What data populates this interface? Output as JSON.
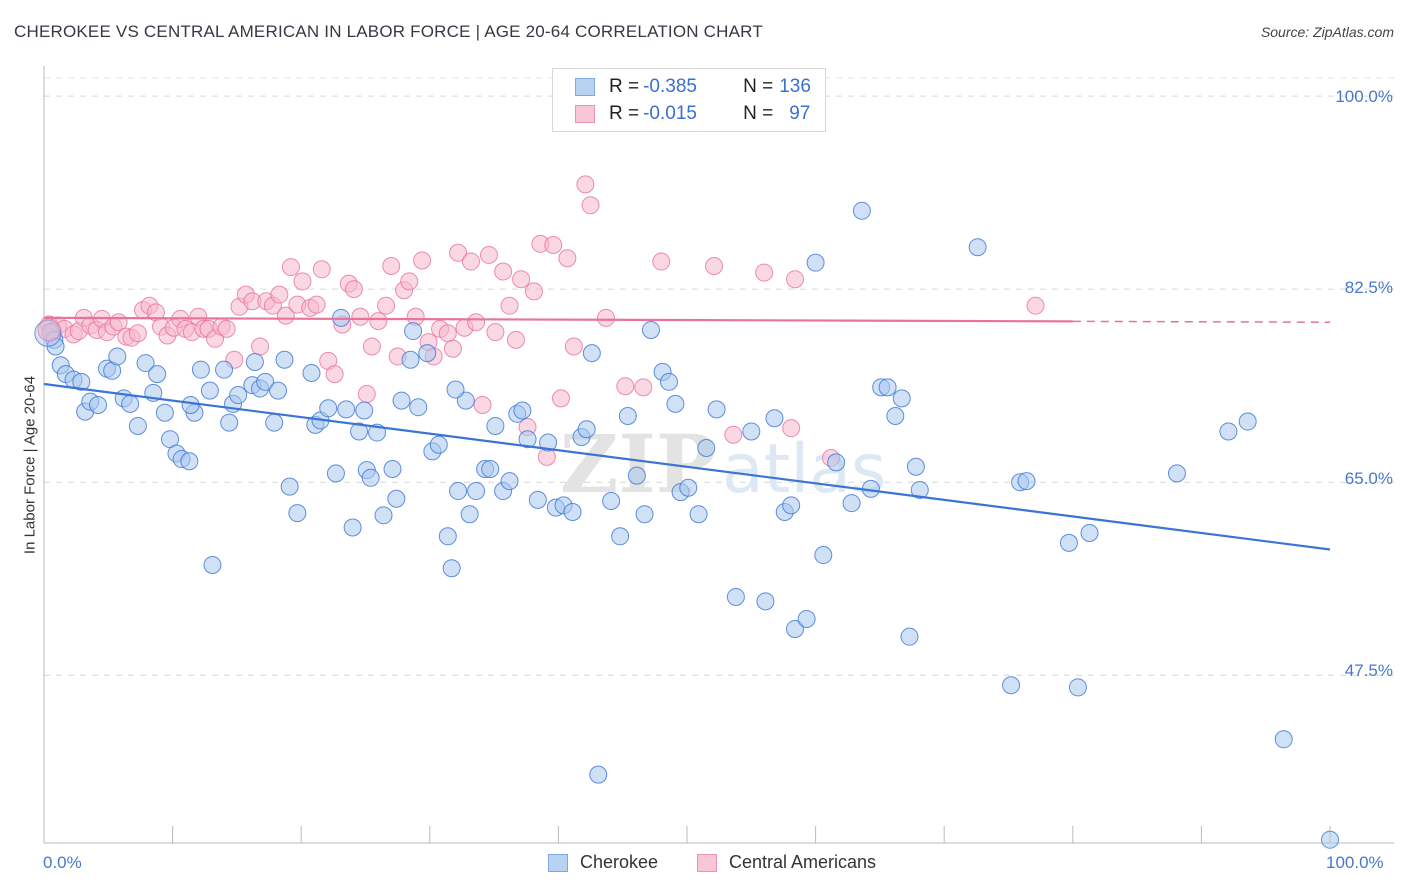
{
  "title": "CHEROKEE VS CENTRAL AMERICAN IN LABOR FORCE | AGE 20-64 CORRELATION CHART",
  "source": "Source: ZipAtlas.com",
  "colors": {
    "blue": "#3a74d4",
    "blue_fill": "#a9c8ef",
    "pink": "#e9729c",
    "pink_fill": "#f5b8cc",
    "tick_text": "#4a78c8"
  },
  "legend": {
    "rows": [
      {
        "r_label": "R = ",
        "r_value": "-0.385",
        "n_label": "N = ",
        "n_value": "136"
      },
      {
        "r_label": "R = ",
        "r_value": "-0.015",
        "n_label": "N = ",
        "n_value": "97"
      }
    ]
  },
  "bottom_legend": {
    "series1": "Cherokee",
    "series2": "Central Americans"
  },
  "chart_data": {
    "type": "scatter",
    "title": "CHEROKEE VS CENTRAL AMERICAN IN LABOR FORCE | AGE 20-64 CORRELATION CHART",
    "ylabel": "In Labor Force | Age 20-64",
    "xlabel": "",
    "x_tick_labels": [
      "0.0%",
      "100.0%"
    ],
    "y_tick_labels": [
      "100.0%",
      "82.5%",
      "65.0%",
      "47.5%"
    ],
    "y_ticks": [
      100.0,
      82.5,
      65.0,
      47.5
    ],
    "xlim": [
      0,
      100
    ],
    "ylim": [
      32.3,
      102.0
    ],
    "grid": true,
    "legend_position": "top-center",
    "series": [
      {
        "name": "Cherokee",
        "R": -0.385,
        "N": 136,
        "trend": {
          "x0": 0,
          "y0": 73.9,
          "x1": 100,
          "y1": 58.9
        },
        "points": [
          [
            0.5,
            78.6
          ],
          [
            0.8,
            77.9
          ],
          [
            0.9,
            77.3
          ],
          [
            1.3,
            75.6
          ],
          [
            1.7,
            74.8
          ],
          [
            2.3,
            74.3
          ],
          [
            2.9,
            74.1
          ],
          [
            3.2,
            71.4
          ],
          [
            3.6,
            72.3
          ],
          [
            4.2,
            72.0
          ],
          [
            4.9,
            75.3
          ],
          [
            5.3,
            75.1
          ],
          [
            5.7,
            76.4
          ],
          [
            6.2,
            72.6
          ],
          [
            6.7,
            72.1
          ],
          [
            7.3,
            70.1
          ],
          [
            7.9,
            75.8
          ],
          [
            8.5,
            73.1
          ],
          [
            8.8,
            74.8
          ],
          [
            9.4,
            71.3
          ],
          [
            9.8,
            68.9
          ],
          [
            10.3,
            67.6
          ],
          [
            10.7,
            67.1
          ],
          [
            11.3,
            66.9
          ],
          [
            11.7,
            71.3
          ],
          [
            12.2,
            75.2
          ],
          [
            12.9,
            73.3
          ],
          [
            13.1,
            57.5
          ],
          [
            14.0,
            75.2
          ],
          [
            14.4,
            70.4
          ],
          [
            14.7,
            72.1
          ],
          [
            15.1,
            72.9
          ],
          [
            16.2,
            73.8
          ],
          [
            16.4,
            75.9
          ],
          [
            16.8,
            73.5
          ],
          [
            17.2,
            74.1
          ],
          [
            17.9,
            70.4
          ],
          [
            18.2,
            73.3
          ],
          [
            18.7,
            76.1
          ],
          [
            19.1,
            64.6
          ],
          [
            19.7,
            62.2
          ],
          [
            20.8,
            74.9
          ],
          [
            21.1,
            70.2
          ],
          [
            21.5,
            70.6
          ],
          [
            22.1,
            71.7
          ],
          [
            22.7,
            65.8
          ],
          [
            23.1,
            79.9
          ],
          [
            23.5,
            71.6
          ],
          [
            24.0,
            60.9
          ],
          [
            24.5,
            69.6
          ],
          [
            25.1,
            66.1
          ],
          [
            25.4,
            65.4
          ],
          [
            25.9,
            69.5
          ],
          [
            26.4,
            62.0
          ],
          [
            27.1,
            66.2
          ],
          [
            27.4,
            63.5
          ],
          [
            27.8,
            72.4
          ],
          [
            28.5,
            76.1
          ],
          [
            28.7,
            78.7
          ],
          [
            29.1,
            71.8
          ],
          [
            29.8,
            76.7
          ],
          [
            30.2,
            67.8
          ],
          [
            30.7,
            68.4
          ],
          [
            31.4,
            60.1
          ],
          [
            31.7,
            57.2
          ],
          [
            32.2,
            64.2
          ],
          [
            32.8,
            72.4
          ],
          [
            33.1,
            62.1
          ],
          [
            33.6,
            64.2
          ],
          [
            34.3,
            66.2
          ],
          [
            34.7,
            66.2
          ],
          [
            35.1,
            70.1
          ],
          [
            35.7,
            64.2
          ],
          [
            36.2,
            65.1
          ],
          [
            36.8,
            71.2
          ],
          [
            37.2,
            71.5
          ],
          [
            37.6,
            68.9
          ],
          [
            38.4,
            63.4
          ],
          [
            39.2,
            68.6
          ],
          [
            39.8,
            62.7
          ],
          [
            40.4,
            62.9
          ],
          [
            41.1,
            62.3
          ],
          [
            41.8,
            69.1
          ],
          [
            42.2,
            69.8
          ],
          [
            42.6,
            76.7
          ],
          [
            43.1,
            38.5
          ],
          [
            44.1,
            63.3
          ],
          [
            44.8,
            60.1
          ],
          [
            45.4,
            71.0
          ],
          [
            46.1,
            65.6
          ],
          [
            46.7,
            62.1
          ],
          [
            47.2,
            78.8
          ],
          [
            48.1,
            75.0
          ],
          [
            48.6,
            74.1
          ],
          [
            49.1,
            72.1
          ],
          [
            49.5,
            64.1
          ],
          [
            50.1,
            64.5
          ],
          [
            50.9,
            62.1
          ],
          [
            51.5,
            68.1
          ],
          [
            52.3,
            71.6
          ],
          [
            53.8,
            54.6
          ],
          [
            55.0,
            69.6
          ],
          [
            56.1,
            54.2
          ],
          [
            56.8,
            70.8
          ],
          [
            57.6,
            62.3
          ],
          [
            58.1,
            62.9
          ],
          [
            58.4,
            51.7
          ],
          [
            59.3,
            52.6
          ],
          [
            60.0,
            84.9
          ],
          [
            60.6,
            58.4
          ],
          [
            61.6,
            66.8
          ],
          [
            62.8,
            63.1
          ],
          [
            63.6,
            89.6
          ],
          [
            64.3,
            64.4
          ],
          [
            65.1,
            73.6
          ],
          [
            65.6,
            73.6
          ],
          [
            66.2,
            71.0
          ],
          [
            66.7,
            72.6
          ],
          [
            67.3,
            51.0
          ],
          [
            67.8,
            66.4
          ],
          [
            68.1,
            64.3
          ],
          [
            72.6,
            86.3
          ],
          [
            75.2,
            46.6
          ],
          [
            75.9,
            65.0
          ],
          [
            76.4,
            65.1
          ],
          [
            79.7,
            59.5
          ],
          [
            80.4,
            46.4
          ],
          [
            81.3,
            60.4
          ],
          [
            88.1,
            65.8
          ],
          [
            92.1,
            69.6
          ],
          [
            93.6,
            70.5
          ],
          [
            96.4,
            41.7
          ],
          [
            100.0,
            32.6
          ],
          [
            11.4,
            72.0
          ],
          [
            24.9,
            71.5
          ],
          [
            32.0,
            73.4
          ]
        ]
      },
      {
        "name": "Central Americans",
        "R": -0.015,
        "N": 97,
        "trend": {
          "x0": 0,
          "y0": 79.9,
          "x1": 100,
          "y1": 79.5,
          "solid_until_x": 80
        },
        "points": [
          [
            0.4,
            79.3
          ],
          [
            0.7,
            78.7
          ],
          [
            1.1,
            79.2
          ],
          [
            1.6,
            78.9
          ],
          [
            2.3,
            78.4
          ],
          [
            2.7,
            78.7
          ],
          [
            3.1,
            79.9
          ],
          [
            3.6,
            79.2
          ],
          [
            4.1,
            78.8
          ],
          [
            4.5,
            79.8
          ],
          [
            4.9,
            78.6
          ],
          [
            5.4,
            79.1
          ],
          [
            5.8,
            79.5
          ],
          [
            6.4,
            78.2
          ],
          [
            6.8,
            78.1
          ],
          [
            7.3,
            78.5
          ],
          [
            7.7,
            80.6
          ],
          [
            8.2,
            81.0
          ],
          [
            8.7,
            80.4
          ],
          [
            9.1,
            79.1
          ],
          [
            9.6,
            78.3
          ],
          [
            10.1,
            79.0
          ],
          [
            10.6,
            79.8
          ],
          [
            11.0,
            78.9
          ],
          [
            11.5,
            78.6
          ],
          [
            12.0,
            80.0
          ],
          [
            12.4,
            78.9
          ],
          [
            12.8,
            78.9
          ],
          [
            13.3,
            78.0
          ],
          [
            13.8,
            79.1
          ],
          [
            14.2,
            78.9
          ],
          [
            14.8,
            76.1
          ],
          [
            15.2,
            80.9
          ],
          [
            15.7,
            82.0
          ],
          [
            16.2,
            81.4
          ],
          [
            16.8,
            77.3
          ],
          [
            17.3,
            81.4
          ],
          [
            17.8,
            81.0
          ],
          [
            18.3,
            82.0
          ],
          [
            18.8,
            80.1
          ],
          [
            19.2,
            84.5
          ],
          [
            19.7,
            81.1
          ],
          [
            20.1,
            83.2
          ],
          [
            20.7,
            80.8
          ],
          [
            21.2,
            81.1
          ],
          [
            21.6,
            84.3
          ],
          [
            22.1,
            76.0
          ],
          [
            22.6,
            74.8
          ],
          [
            23.2,
            79.3
          ],
          [
            23.7,
            83.0
          ],
          [
            24.1,
            82.5
          ],
          [
            24.6,
            80.0
          ],
          [
            25.1,
            73.0
          ],
          [
            25.5,
            77.3
          ],
          [
            26.0,
            79.6
          ],
          [
            26.6,
            81.0
          ],
          [
            27.0,
            84.6
          ],
          [
            27.5,
            76.4
          ],
          [
            28.0,
            82.4
          ],
          [
            28.4,
            83.2
          ],
          [
            28.9,
            80.0
          ],
          [
            29.4,
            85.1
          ],
          [
            29.9,
            77.7
          ],
          [
            30.3,
            76.4
          ],
          [
            30.8,
            78.9
          ],
          [
            31.4,
            78.5
          ],
          [
            31.8,
            77.1
          ],
          [
            32.2,
            85.8
          ],
          [
            32.7,
            79.0
          ],
          [
            33.2,
            85.0
          ],
          [
            33.6,
            79.5
          ],
          [
            34.1,
            72.0
          ],
          [
            34.6,
            85.6
          ],
          [
            35.1,
            78.6
          ],
          [
            35.7,
            84.1
          ],
          [
            36.2,
            81.0
          ],
          [
            36.7,
            77.9
          ],
          [
            37.1,
            83.4
          ],
          [
            37.6,
            70.0
          ],
          [
            38.1,
            82.3
          ],
          [
            38.6,
            86.6
          ],
          [
            39.1,
            67.3
          ],
          [
            39.6,
            86.5
          ],
          [
            40.2,
            72.6
          ],
          [
            40.7,
            85.3
          ],
          [
            41.2,
            77.3
          ],
          [
            42.1,
            92.0
          ],
          [
            42.5,
            90.1
          ],
          [
            43.7,
            79.9
          ],
          [
            45.2,
            73.7
          ],
          [
            46.6,
            73.6
          ],
          [
            48.0,
            85.0
          ],
          [
            52.1,
            84.6
          ],
          [
            53.6,
            69.3
          ],
          [
            56.0,
            84.0
          ],
          [
            58.1,
            69.9
          ],
          [
            58.4,
            83.4
          ]
        ]
      }
    ],
    "extra_points_central_americans": [
      [
        61.2,
        67.2
      ],
      [
        77.1,
        81.0
      ]
    ]
  }
}
